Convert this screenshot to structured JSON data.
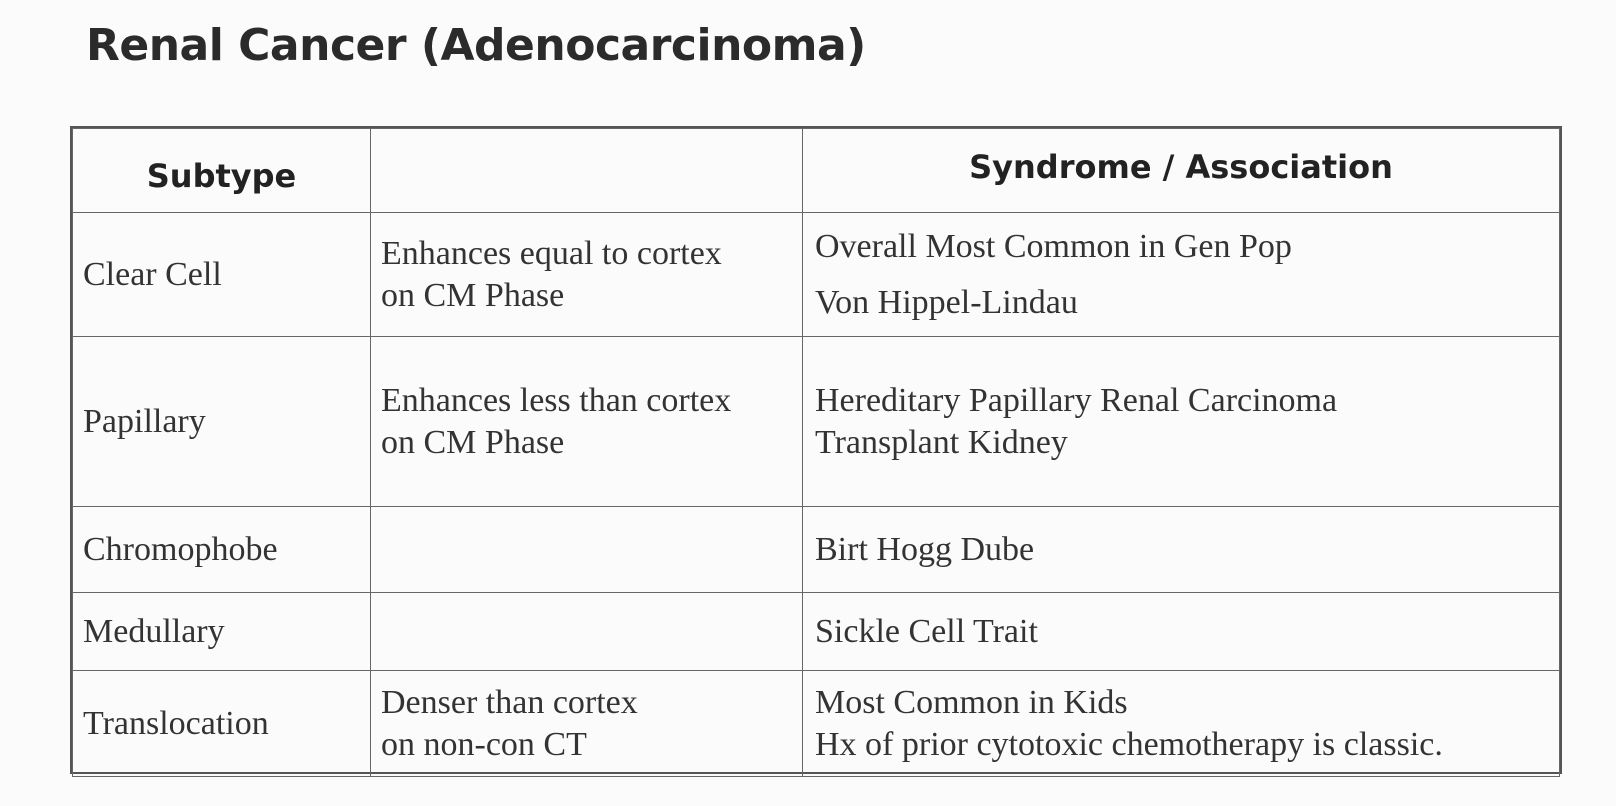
{
  "title": "Renal Cancer (Adenocarcinoma)",
  "table": {
    "headers": [
      "Subtype",
      "",
      "Syndrome / Association"
    ],
    "rows": [
      {
        "subtype": "Clear Cell",
        "enhancement": [
          "Enhances equal to cortex",
          "on CM Phase"
        ],
        "association": [
          "Overall Most Common in Gen Pop",
          "Von Hippel-Lindau"
        ]
      },
      {
        "subtype": "Papillary",
        "enhancement": [
          "Enhances less than cortex",
          "on CM Phase"
        ],
        "association": [
          "Hereditary Papillary Renal Carcinoma",
          "Transplant Kidney"
        ]
      },
      {
        "subtype": "Chromophobe",
        "enhancement": [],
        "association": [
          "Birt Hogg Dube"
        ]
      },
      {
        "subtype": "Medullary",
        "enhancement": [],
        "association": [
          "Sickle Cell Trait"
        ]
      },
      {
        "subtype": "Translocation",
        "enhancement": [
          "Denser than cortex",
          "on non-con CT"
        ],
        "association": [
          "Most Common in Kids",
          "Hx of prior cytotoxic chemotherapy is classic."
        ]
      }
    ]
  }
}
